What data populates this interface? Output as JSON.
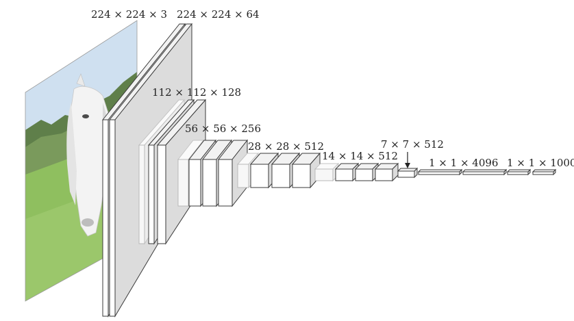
{
  "labels": {
    "input": "224 × 224 × 3",
    "conv1": "224 × 224 × 64",
    "conv2": "112 × 112 × 128",
    "conv3": "56 × 56 × 256",
    "conv4": "28 × 28 × 512",
    "conv5": "14 × 14 × 512",
    "pool5": "7 × 7 × 512",
    "fc1": "1 × 1 × 4096",
    "fc2": "1 × 1 × 1000"
  },
  "colors": {
    "sky": "#cfe0f0",
    "trees": "#5f7f4a",
    "grass": "#8fbf5f",
    "horse": "#f3f3f3",
    "mane": "#d9d9d9"
  },
  "input_image": "horse-in-field-photo"
}
